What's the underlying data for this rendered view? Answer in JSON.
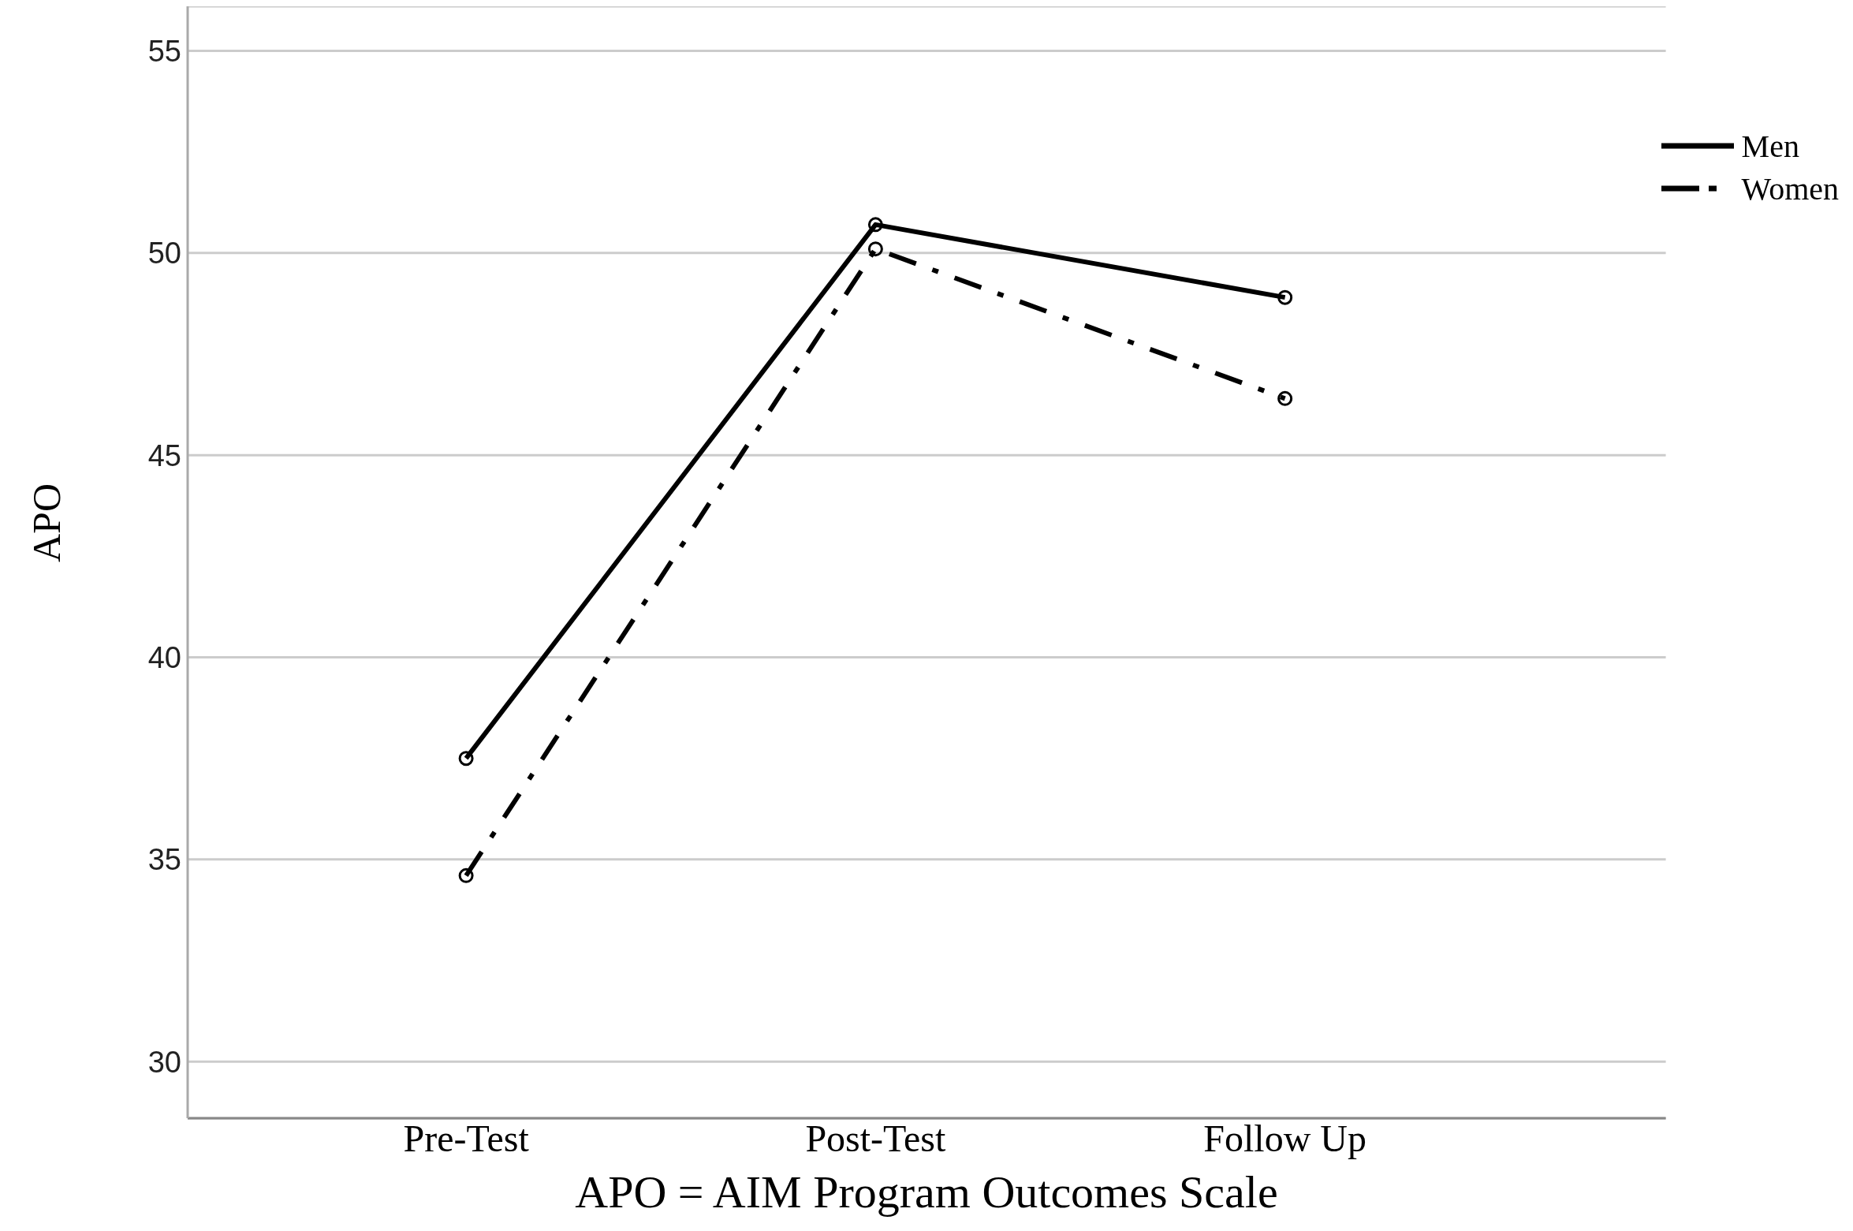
{
  "chart_data": {
    "type": "line",
    "ylabel": "APO",
    "categories": [
      "Pre-Test",
      "Post-Test",
      "Follow Up"
    ],
    "series": [
      {
        "name": "Men",
        "color": "#000000",
        "values": [
          37.5,
          50.7,
          48.9
        ],
        "line_style": "solid"
      },
      {
        "name": "Women",
        "color": "#000000",
        "values": [
          34.6,
          50.1,
          46.4
        ],
        "line_style": "dashdot"
      }
    ],
    "ylim": [
      28.6,
      56.1
    ],
    "yticks": [
      30,
      35,
      40,
      45,
      50,
      55
    ],
    "grid": "y",
    "legend": "top right",
    "marker": "circle",
    "annotations": [
      "APO = AIM Program Outcomes Scale"
    ]
  }
}
